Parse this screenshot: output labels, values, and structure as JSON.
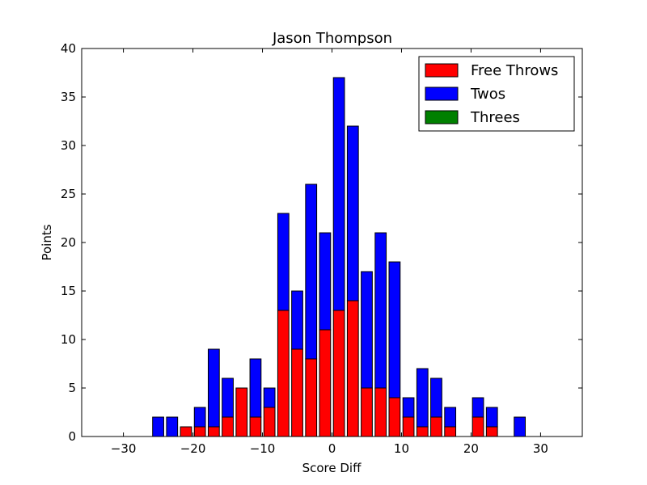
{
  "chart_data": {
    "type": "bar",
    "stacked": true,
    "title": "Jason Thompson",
    "xlabel": "Score Diff",
    "ylabel": "Points",
    "xlim": [
      -36,
      36
    ],
    "ylim": [
      0,
      40
    ],
    "x_ticks": [
      -30,
      -20,
      -10,
      0,
      10,
      20,
      30
    ],
    "x_tick_labels": [
      "−30",
      "−20",
      "−10",
      "0",
      "10",
      "20",
      "30"
    ],
    "y_ticks": [
      0,
      5,
      10,
      15,
      20,
      25,
      30,
      35,
      40
    ],
    "y_tick_labels": [
      "0",
      "5",
      "10",
      "15",
      "20",
      "25",
      "30",
      "35",
      "40"
    ],
    "bar_width": 1.6,
    "legend_position": "top-right",
    "grid": false,
    "x": [
      -35,
      -33,
      -31,
      -29,
      -27,
      -25,
      -23,
      -21,
      -19,
      -17,
      -15,
      -13,
      -11,
      -9,
      -7,
      -5,
      -3,
      -1,
      1,
      3,
      5,
      7,
      9,
      11,
      13,
      15,
      17,
      19,
      21,
      23,
      25,
      27,
      29,
      31,
      33,
      35
    ],
    "series": [
      {
        "name": "Free Throws",
        "color": "#ff0000",
        "values": [
          0,
          0,
          0,
          0,
          0,
          0,
          0,
          1,
          1,
          1,
          2,
          5,
          2,
          3,
          13,
          9,
          8,
          11,
          13,
          14,
          5,
          5,
          4,
          2,
          1,
          2,
          1,
          0,
          2,
          1,
          0,
          0,
          0,
          0,
          0,
          0
        ]
      },
      {
        "name": "Twos",
        "color": "#0000ff",
        "values": [
          0,
          0,
          0,
          0,
          0,
          2,
          2,
          0,
          2,
          8,
          4,
          0,
          6,
          2,
          10,
          6,
          18,
          10,
          24,
          18,
          12,
          16,
          14,
          2,
          6,
          4,
          2,
          0,
          2,
          2,
          0,
          2,
          0,
          0,
          0,
          0
        ]
      },
      {
        "name": "Threes",
        "color": "#008000",
        "values": [
          0,
          0,
          0,
          0,
          0,
          0,
          0,
          0,
          0,
          0,
          0,
          0,
          0,
          0,
          0,
          0,
          0,
          0,
          0,
          0,
          0,
          0,
          0,
          0,
          0,
          0,
          0,
          0,
          0,
          0,
          0,
          0,
          0,
          0,
          0,
          0
        ]
      }
    ]
  }
}
